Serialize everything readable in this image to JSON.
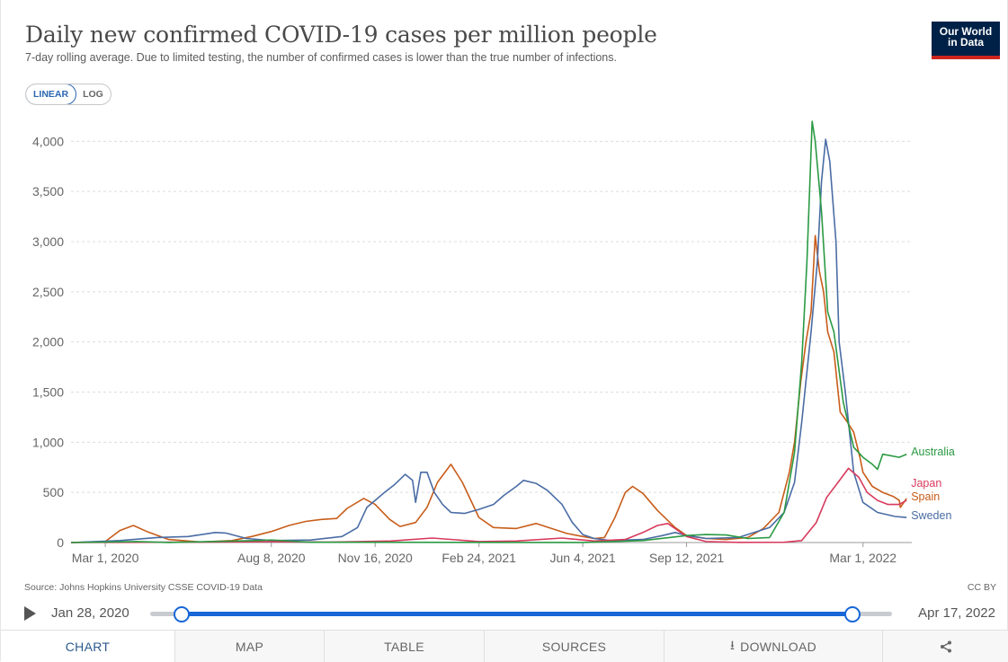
{
  "header": {
    "title": "Daily new confirmed COVID-19 cases per million people",
    "subtitle": "7-day rolling average. Due to limited testing, the number of confirmed cases is lower than the true number of infections.",
    "logo_line1": "Our World",
    "logo_line2": "in Data"
  },
  "scale_toggle": {
    "linear_label": "LINEAR",
    "log_label": "LOG",
    "selected": "LINEAR"
  },
  "chart_data": {
    "type": "line",
    "title": "Daily new confirmed COVID-19 cases per million people",
    "ylim": [
      0,
      4000
    ],
    "y_ticks": [
      0,
      500,
      1000,
      1500,
      2000,
      2500,
      3000,
      3500,
      4000
    ],
    "y_tick_labels": [
      "0",
      "500",
      "1,000",
      "1,500",
      "2,000",
      "2,500",
      "3,000",
      "3,500",
      "4,000"
    ],
    "x_tick_labels": [
      "Mar 1, 2020",
      "Aug 8, 2020",
      "Nov 16, 2020",
      "Feb 24, 2021",
      "Jun 4, 2021",
      "Sep 12, 2021",
      "Mar 1, 2022"
    ],
    "x_tick_dates": [
      "2020-03-01",
      "2020-08-08",
      "2020-11-16",
      "2021-02-24",
      "2021-06-04",
      "2021-09-12",
      "2022-03-01"
    ],
    "x_range": [
      "2020-01-28",
      "2022-04-17"
    ],
    "grid": "horizontal dashed",
    "legend_placement": "right, labels at line ends",
    "series": [
      {
        "name": "Spain",
        "color": "#c85d1a",
        "points": [
          [
            "2020-01-28",
            0
          ],
          [
            "2020-03-01",
            10
          ],
          [
            "2020-03-15",
            120
          ],
          [
            "2020-03-28",
            170
          ],
          [
            "2020-04-10",
            110
          ],
          [
            "2020-05-01",
            30
          ],
          [
            "2020-06-01",
            5
          ],
          [
            "2020-07-01",
            20
          ],
          [
            "2020-07-20",
            60
          ],
          [
            "2020-08-08",
            110
          ],
          [
            "2020-08-25",
            170
          ],
          [
            "2020-09-10",
            210
          ],
          [
            "2020-09-25",
            230
          ],
          [
            "2020-10-10",
            240
          ],
          [
            "2020-10-20",
            340
          ],
          [
            "2020-11-05",
            440
          ],
          [
            "2020-11-16",
            380
          ],
          [
            "2020-11-30",
            230
          ],
          [
            "2020-12-10",
            160
          ],
          [
            "2020-12-25",
            200
          ],
          [
            "2021-01-05",
            350
          ],
          [
            "2021-01-15",
            600
          ],
          [
            "2021-01-28",
            780
          ],
          [
            "2021-02-08",
            600
          ],
          [
            "2021-02-24",
            250
          ],
          [
            "2021-03-10",
            150
          ],
          [
            "2021-04-01",
            140
          ],
          [
            "2021-04-20",
            190
          ],
          [
            "2021-05-05",
            140
          ],
          [
            "2021-05-20",
            90
          ],
          [
            "2021-06-04",
            60
          ],
          [
            "2021-06-15",
            40
          ],
          [
            "2021-06-25",
            50
          ],
          [
            "2021-07-05",
            250
          ],
          [
            "2021-07-15",
            500
          ],
          [
            "2021-07-22",
            560
          ],
          [
            "2021-08-01",
            490
          ],
          [
            "2021-08-15",
            320
          ],
          [
            "2021-09-01",
            150
          ],
          [
            "2021-09-12",
            70
          ],
          [
            "2021-10-01",
            40
          ],
          [
            "2021-10-20",
            30
          ],
          [
            "2021-11-10",
            50
          ],
          [
            "2021-11-25",
            140
          ],
          [
            "2021-12-10",
            300
          ],
          [
            "2021-12-20",
            700
          ],
          [
            "2021-12-25",
            1000
          ],
          [
            "2021-12-31",
            1600
          ],
          [
            "2022-01-05",
            2000
          ],
          [
            "2022-01-10",
            2300
          ],
          [
            "2022-01-14",
            3060
          ],
          [
            "2022-01-18",
            2700
          ],
          [
            "2022-01-22",
            2500
          ],
          [
            "2022-01-26",
            2100
          ],
          [
            "2022-02-01",
            1900
          ],
          [
            "2022-02-07",
            1300
          ],
          [
            "2022-02-14",
            1200
          ],
          [
            "2022-02-20",
            1100
          ],
          [
            "2022-02-26",
            850
          ],
          [
            "2022-03-01",
            700
          ],
          [
            "2022-03-10",
            560
          ],
          [
            "2022-03-20",
            500
          ],
          [
            "2022-03-30",
            460
          ],
          [
            "2022-04-05",
            420
          ],
          [
            "2022-04-06",
            350
          ],
          [
            "2022-04-12",
            440
          ]
        ]
      },
      {
        "name": "Sweden",
        "color": "#4a6ca4",
        "points": [
          [
            "2020-01-28",
            0
          ],
          [
            "2020-03-15",
            20
          ],
          [
            "2020-04-20",
            50
          ],
          [
            "2020-05-20",
            60
          ],
          [
            "2020-06-15",
            100
          ],
          [
            "2020-06-25",
            95
          ],
          [
            "2020-07-15",
            40
          ],
          [
            "2020-08-08",
            20
          ],
          [
            "2020-09-15",
            25
          ],
          [
            "2020-10-15",
            60
          ],
          [
            "2020-10-30",
            150
          ],
          [
            "2020-11-08",
            350
          ],
          [
            "2020-11-16",
            420
          ],
          [
            "2020-11-25",
            500
          ],
          [
            "2020-12-05",
            580
          ],
          [
            "2020-12-15",
            680
          ],
          [
            "2020-12-22",
            620
          ],
          [
            "2020-12-25",
            400
          ],
          [
            "2020-12-30",
            700
          ],
          [
            "2021-01-05",
            700
          ],
          [
            "2021-01-12",
            500
          ],
          [
            "2021-01-20",
            380
          ],
          [
            "2021-01-28",
            300
          ],
          [
            "2021-02-10",
            290
          ],
          [
            "2021-02-24",
            330
          ],
          [
            "2021-03-10",
            380
          ],
          [
            "2021-03-20",
            470
          ],
          [
            "2021-04-01",
            560
          ],
          [
            "2021-04-08",
            620
          ],
          [
            "2021-04-20",
            590
          ],
          [
            "2021-05-01",
            520
          ],
          [
            "2021-05-15",
            380
          ],
          [
            "2021-05-25",
            200
          ],
          [
            "2021-06-04",
            80
          ],
          [
            "2021-06-15",
            40
          ],
          [
            "2021-07-01",
            20
          ],
          [
            "2021-08-01",
            30
          ],
          [
            "2021-08-20",
            70
          ],
          [
            "2021-09-01",
            100
          ],
          [
            "2021-09-12",
            70
          ],
          [
            "2021-10-01",
            40
          ],
          [
            "2021-11-01",
            50
          ],
          [
            "2021-12-01",
            150
          ],
          [
            "2021-12-15",
            300
          ],
          [
            "2021-12-25",
            600
          ],
          [
            "2022-01-01",
            1200
          ],
          [
            "2022-01-10",
            2100
          ],
          [
            "2022-01-16",
            2800
          ],
          [
            "2022-01-20",
            3600
          ],
          [
            "2022-01-24",
            4020
          ],
          [
            "2022-01-28",
            3800
          ],
          [
            "2022-02-03",
            3000
          ],
          [
            "2022-02-06",
            2000
          ],
          [
            "2022-02-12",
            1500
          ],
          [
            "2022-02-20",
            700
          ],
          [
            "2022-03-01",
            400
          ],
          [
            "2022-03-15",
            300
          ],
          [
            "2022-04-01",
            260
          ],
          [
            "2022-04-12",
            250
          ]
        ]
      },
      {
        "name": "Japan",
        "color": "#d73a5c",
        "points": [
          [
            "2020-01-28",
            0
          ],
          [
            "2020-04-15",
            3
          ],
          [
            "2020-08-08",
            8
          ],
          [
            "2020-10-01",
            4
          ],
          [
            "2020-12-01",
            15
          ],
          [
            "2021-01-10",
            45
          ],
          [
            "2021-02-24",
            10
          ],
          [
            "2021-04-01",
            15
          ],
          [
            "2021-05-15",
            45
          ],
          [
            "2021-06-15",
            15
          ],
          [
            "2021-07-15",
            30
          ],
          [
            "2021-08-01",
            100
          ],
          [
            "2021-08-15",
            170
          ],
          [
            "2021-08-25",
            190
          ],
          [
            "2021-09-12",
            60
          ],
          [
            "2021-10-01",
            10
          ],
          [
            "2021-11-01",
            2
          ],
          [
            "2021-12-15",
            3
          ],
          [
            "2022-01-01",
            20
          ],
          [
            "2022-01-15",
            200
          ],
          [
            "2022-01-25",
            450
          ],
          [
            "2022-02-05",
            600
          ],
          [
            "2022-02-15",
            740
          ],
          [
            "2022-02-25",
            650
          ],
          [
            "2022-03-05",
            500
          ],
          [
            "2022-03-15",
            420
          ],
          [
            "2022-03-25",
            380
          ],
          [
            "2022-04-05",
            380
          ],
          [
            "2022-04-12",
            420
          ]
        ]
      },
      {
        "name": "Australia",
        "color": "#2a9a43",
        "points": [
          [
            "2020-01-28",
            0
          ],
          [
            "2020-04-01",
            10
          ],
          [
            "2020-05-01",
            1
          ],
          [
            "2020-07-25",
            20
          ],
          [
            "2020-08-08",
            25
          ],
          [
            "2020-09-15",
            3
          ],
          [
            "2021-06-04",
            1
          ],
          [
            "2021-08-01",
            20
          ],
          [
            "2021-09-12",
            70
          ],
          [
            "2021-10-01",
            80
          ],
          [
            "2021-10-20",
            75
          ],
          [
            "2021-11-10",
            40
          ],
          [
            "2021-12-01",
            50
          ],
          [
            "2021-12-15",
            300
          ],
          [
            "2021-12-25",
            900
          ],
          [
            "2022-01-01",
            1800
          ],
          [
            "2022-01-06",
            2800
          ],
          [
            "2022-01-11",
            4200
          ],
          [
            "2022-01-14",
            4000
          ],
          [
            "2022-01-20",
            3300
          ],
          [
            "2022-01-26",
            2300
          ],
          [
            "2022-02-01",
            2100
          ],
          [
            "2022-02-10",
            1400
          ],
          [
            "2022-02-20",
            950
          ],
          [
            "2022-03-01",
            850
          ],
          [
            "2022-03-10",
            780
          ],
          [
            "2022-03-15",
            730
          ],
          [
            "2022-03-20",
            880
          ],
          [
            "2022-04-05",
            850
          ],
          [
            "2022-04-12",
            880
          ]
        ]
      }
    ]
  },
  "footer": {
    "source": "Source: Johns Hopkins University CSSE COVID-19 Data",
    "license": "CC BY"
  },
  "timeline": {
    "start_label": "Jan 28, 2020",
    "end_label": "Apr 17, 2022"
  },
  "tabs": [
    {
      "label": "CHART",
      "active": true
    },
    {
      "label": "MAP"
    },
    {
      "label": "TABLE"
    },
    {
      "label": "SOURCES"
    },
    {
      "label": "DOWNLOAD",
      "icon": "download-icon"
    },
    {
      "label": "",
      "icon": "share-icon"
    }
  ]
}
